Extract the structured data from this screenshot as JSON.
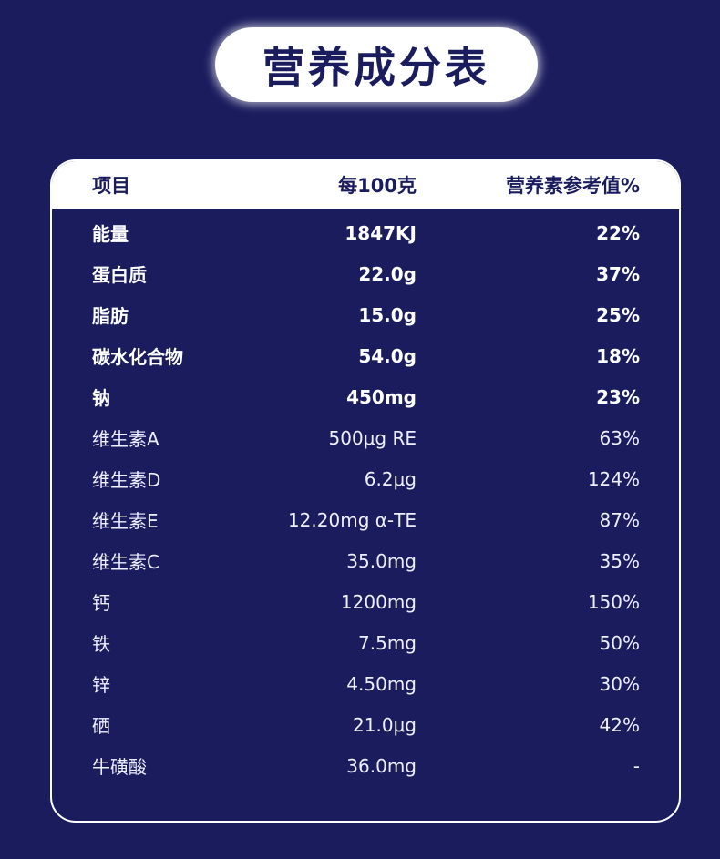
{
  "title": "营养成分表",
  "table": {
    "headers": [
      "项目",
      "每100克",
      "营养素参考值%"
    ],
    "rows": [
      {
        "item": "能量",
        "per100g": "1847KJ",
        "nrv": "22%",
        "bold": true
      },
      {
        "item": "蛋白质",
        "per100g": "22.0g",
        "nrv": "37%",
        "bold": true
      },
      {
        "item": "脂肪",
        "per100g": "15.0g",
        "nrv": "25%",
        "bold": true
      },
      {
        "item": "碳水化合物",
        "per100g": "54.0g",
        "nrv": "18%",
        "bold": true
      },
      {
        "item": "钠",
        "per100g": "450mg",
        "nrv": "23%",
        "bold": true
      },
      {
        "item": "维生素A",
        "per100g": "500μg RE",
        "nrv": "63%",
        "bold": false
      },
      {
        "item": "维生素D",
        "per100g": "6.2μg",
        "nrv": "124%",
        "bold": false
      },
      {
        "item": "维生素E",
        "per100g": "12.20mg α-TE",
        "nrv": "87%",
        "bold": false
      },
      {
        "item": "维生素C",
        "per100g": "35.0mg",
        "nrv": "35%",
        "bold": false
      },
      {
        "item": "钙",
        "per100g": "1200mg",
        "nrv": "150%",
        "bold": false
      },
      {
        "item": "铁",
        "per100g": "7.5mg",
        "nrv": "50%",
        "bold": false
      },
      {
        "item": "锌",
        "per100g": "4.50mg",
        "nrv": "30%",
        "bold": false
      },
      {
        "item": "硒",
        "per100g": "21.0μg",
        "nrv": "42%",
        "bold": false
      },
      {
        "item": "牛磺酸",
        "per100g": "36.0mg",
        "nrv": "-",
        "bold": false
      }
    ]
  },
  "colors": {
    "background": "#1b1c5e",
    "header": "#ffffff"
  }
}
